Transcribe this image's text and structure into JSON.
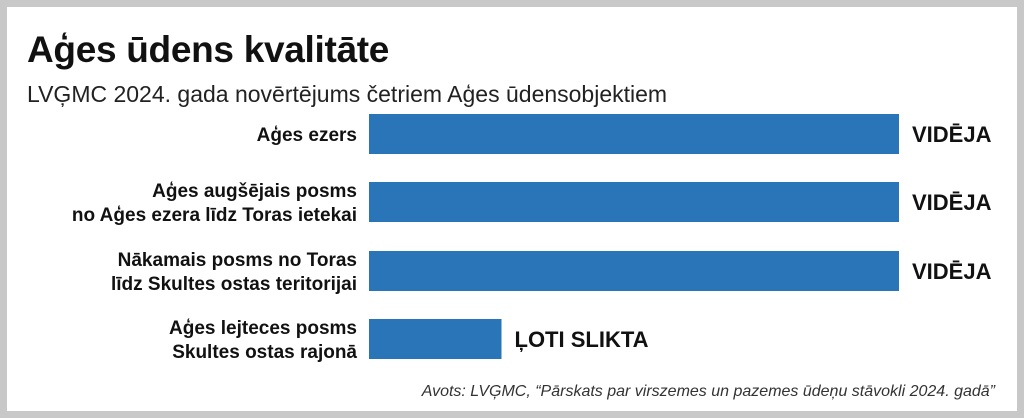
{
  "title": "Aģes ūdens kvalitāte",
  "subtitle": "LVĢMC 2024. gada novērtējums četriem Aģes ūdensobjektiem",
  "source": "Avots: LVĢMC, “Pārskats par virszemes un pazemes ūdeņu stāvokli 2024. gadā”",
  "colors": {
    "bar": "#2a75b8",
    "text": "#111111",
    "frame": "#c8c8c8"
  },
  "chart_data": {
    "type": "bar",
    "orientation": "horizontal",
    "categories": [
      [
        "Aģes ezers"
      ],
      [
        "Aģes augšējais posms",
        "no Aģes ezera līdz Toras ietekai"
      ],
      [
        "Nākamais posms no Toras",
        "līdz Skultes ostas teritorijai"
      ],
      [
        "Aģes lejteces posms",
        "Skultes ostas rajonā"
      ]
    ],
    "labels": [
      "VIDĒJA",
      "VIDĒJA",
      "VIDĒJA",
      "ĻOTI SLIKTA"
    ],
    "values": [
      1.0,
      1.0,
      1.0,
      0.25
    ],
    "xlim": [
      0,
      1
    ],
    "grid": false,
    "legend": "none",
    "axes_visible": false
  }
}
